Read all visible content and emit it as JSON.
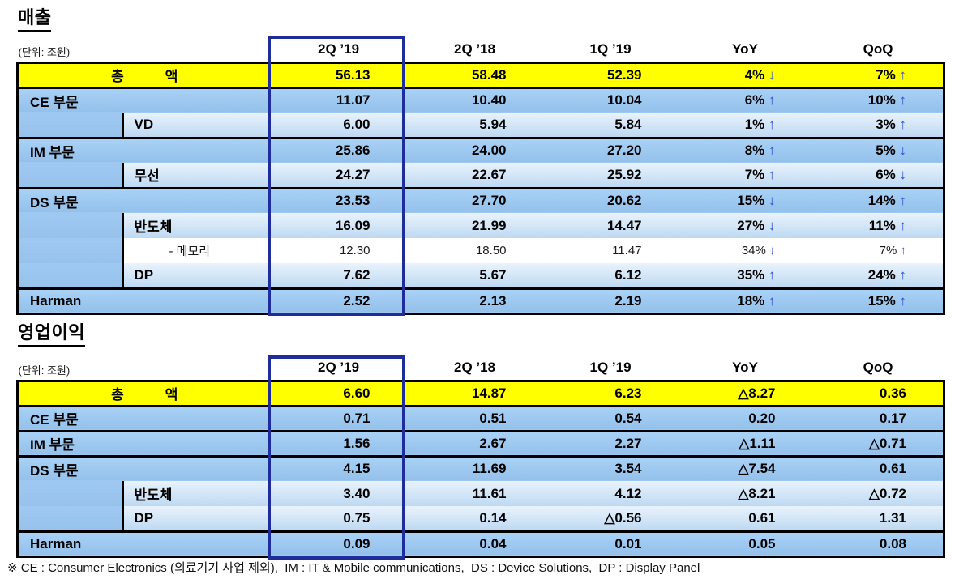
{
  "footer": {
    "text": "※ CE : Consumer Electronics (의료기기 사업 제외),  IM : IT & Mobile communications,  DS : Device Solutions,  DP : Display Panel"
  },
  "colors": {
    "highlight_navy": "#1f2d9b",
    "total_yellow": "#ffff00",
    "section_blue": "#9cc6ee",
    "sub_blue": "#d4e6f7",
    "arrow_blue": "#2d4ecd"
  },
  "tables": [
    {
      "title": "매출",
      "unit_label": "(단위: 조원)",
      "columns": [
        "2Q ’19",
        "2Q ’18",
        "1Q ’19",
        "YoY",
        "QoQ"
      ],
      "rows": [
        {
          "type": "total",
          "label": "총　　　액",
          "values": [
            "56.13",
            "58.48",
            "52.39",
            "4% ↓",
            "7% ↑"
          ]
        },
        {
          "type": "section",
          "label": "CE 부문",
          "values": [
            "11.07",
            "10.40",
            "10.04",
            "6% ↑",
            "10% ↑"
          ]
        },
        {
          "type": "sub",
          "label": "VD",
          "values": [
            "6.00",
            "5.94",
            "5.84",
            "1% ↑",
            "3% ↑"
          ]
        },
        {
          "type": "section",
          "label": "IM 부문",
          "values": [
            "25.86",
            "24.00",
            "27.20",
            "8% ↑",
            "5% ↓"
          ]
        },
        {
          "type": "sub",
          "label": "무선",
          "values": [
            "24.27",
            "22.67",
            "25.92",
            "7% ↑",
            "6% ↓"
          ]
        },
        {
          "type": "section",
          "label": "DS 부문",
          "values": [
            "23.53",
            "27.70",
            "20.62",
            "15% ↓",
            "14% ↑"
          ]
        },
        {
          "type": "sub",
          "label": "반도체",
          "values": [
            "16.09",
            "21.99",
            "14.47",
            "27% ↓",
            "11% ↑"
          ]
        },
        {
          "type": "memo",
          "label": "- 메모리",
          "values": [
            "12.30",
            "18.50",
            "11.47",
            "34% ↓",
            "7% ↑"
          ]
        },
        {
          "type": "sub",
          "label": "DP",
          "values": [
            "7.62",
            "5.67",
            "6.12",
            "35% ↑",
            "24% ↑"
          ]
        },
        {
          "type": "harman",
          "label": "Harman",
          "values": [
            "2.52",
            "2.13",
            "2.19",
            "18% ↑",
            "15% ↑"
          ]
        }
      ]
    },
    {
      "title": "영업이익",
      "unit_label": "(단위: 조원)",
      "columns": [
        "2Q ’19",
        "2Q ’18",
        "1Q ’19",
        "YoY",
        "QoQ"
      ],
      "rows": [
        {
          "type": "total",
          "label": "총　　　액",
          "values": [
            "6.60",
            "14.87",
            "6.23",
            "△8.27",
            "0.36"
          ]
        },
        {
          "type": "section",
          "label": "CE 부문",
          "values": [
            "0.71",
            "0.51",
            "0.54",
            "0.20",
            "0.17"
          ]
        },
        {
          "type": "section",
          "label": "IM 부문",
          "values": [
            "1.56",
            "2.67",
            "2.27",
            "△1.11",
            "△0.71"
          ]
        },
        {
          "type": "section",
          "label": "DS 부문",
          "values": [
            "4.15",
            "11.69",
            "3.54",
            "△7.54",
            "0.61"
          ]
        },
        {
          "type": "sub",
          "label": "반도체",
          "values": [
            "3.40",
            "11.61",
            "4.12",
            "△8.21",
            "△0.72"
          ]
        },
        {
          "type": "sub",
          "label": "DP",
          "values": [
            "0.75",
            "0.14",
            "△0.56",
            "0.61",
            "1.31"
          ]
        },
        {
          "type": "harman",
          "label": "Harman",
          "values": [
            "0.09",
            "0.04",
            "0.01",
            "0.05",
            "0.08"
          ]
        }
      ]
    }
  ]
}
